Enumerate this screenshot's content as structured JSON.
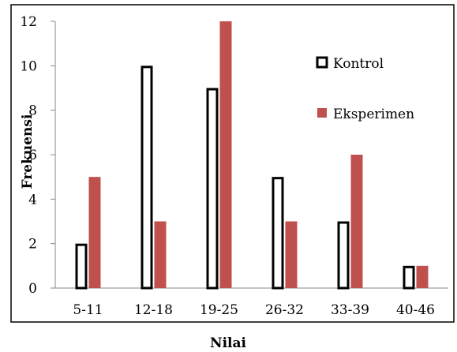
{
  "chart_data": {
    "type": "bar",
    "categories": [
      "5-11",
      "12-18",
      "19-25",
      "26-32",
      "33-39",
      "40-46"
    ],
    "series": [
      {
        "name": "Kontrol",
        "values": [
          2,
          10,
          9,
          5,
          3,
          1
        ],
        "fill": "#ffffff",
        "stroke": "#000000"
      },
      {
        "name": "Eksperimen",
        "values": [
          5,
          3,
          12,
          3,
          6,
          1
        ],
        "fill": "#c0504d",
        "stroke": "#c0504d"
      }
    ],
    "title": "",
    "xlabel": "Nilai",
    "ylabel": "Frekuensi",
    "ylim": [
      0,
      12
    ],
    "yticks": [
      "0",
      "2",
      "4",
      "6",
      "8",
      "10",
      "12"
    ],
    "grid": false,
    "legend": "right"
  }
}
